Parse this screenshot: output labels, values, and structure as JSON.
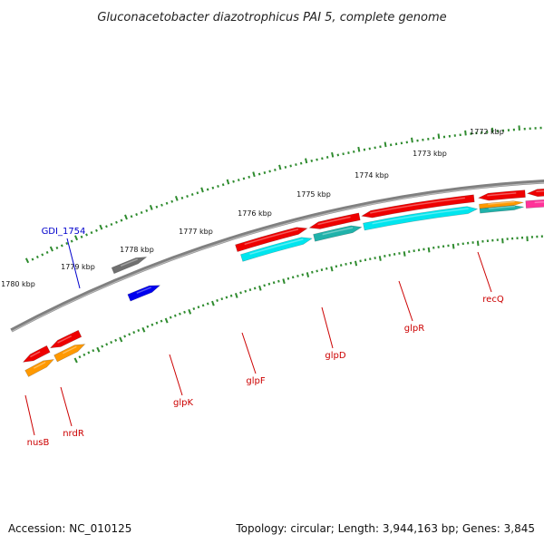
{
  "title": "Gluconacetobacter diazotrophicus PAI 5, complete genome",
  "footer": {
    "accession": "Accession: NC_010125",
    "summary": "Topology: circular; Length: 3,944,163 bp; Genes: 3,845"
  },
  "colors": {
    "backbone": "#808080",
    "tick": "#2e8b2e",
    "label_red": "#cc0000",
    "label_blue": "#0000cc"
  },
  "ticks": [
    {
      "label": "1772 kbp"
    },
    {
      "label": "1773 kbp"
    },
    {
      "label": "1774 kbp"
    },
    {
      "label": "1775 kbp"
    },
    {
      "label": "1776 kbp"
    },
    {
      "label": "1777 kbp"
    },
    {
      "label": "1778 kbp"
    },
    {
      "label": "1779 kbp"
    },
    {
      "label": "1780 kbp"
    }
  ],
  "gene_labels": [
    {
      "name": "GDI_1754",
      "color": "#0000cc"
    },
    {
      "name": "nusB",
      "color": "#cc0000"
    },
    {
      "name": "nrdR",
      "color": "#cc0000"
    },
    {
      "name": "glpK",
      "color": "#cc0000"
    },
    {
      "name": "glpF",
      "color": "#cc0000"
    },
    {
      "name": "glpD",
      "color": "#cc0000"
    },
    {
      "name": "glpR",
      "color": "#cc0000"
    },
    {
      "name": "recQ",
      "color": "#cc0000"
    }
  ],
  "features": [
    {
      "name": "feature-gray",
      "color": "#707070"
    },
    {
      "name": "feature-blue",
      "color": "#0000ee"
    },
    {
      "name": "feature-red",
      "color": "#ee0000"
    },
    {
      "name": "feature-orange",
      "color": "#ff9900"
    },
    {
      "name": "feature-cyan",
      "color": "#00e5ee"
    },
    {
      "name": "feature-teal",
      "color": "#20b2aa"
    },
    {
      "name": "feature-magenta",
      "color": "#ff3399"
    }
  ]
}
